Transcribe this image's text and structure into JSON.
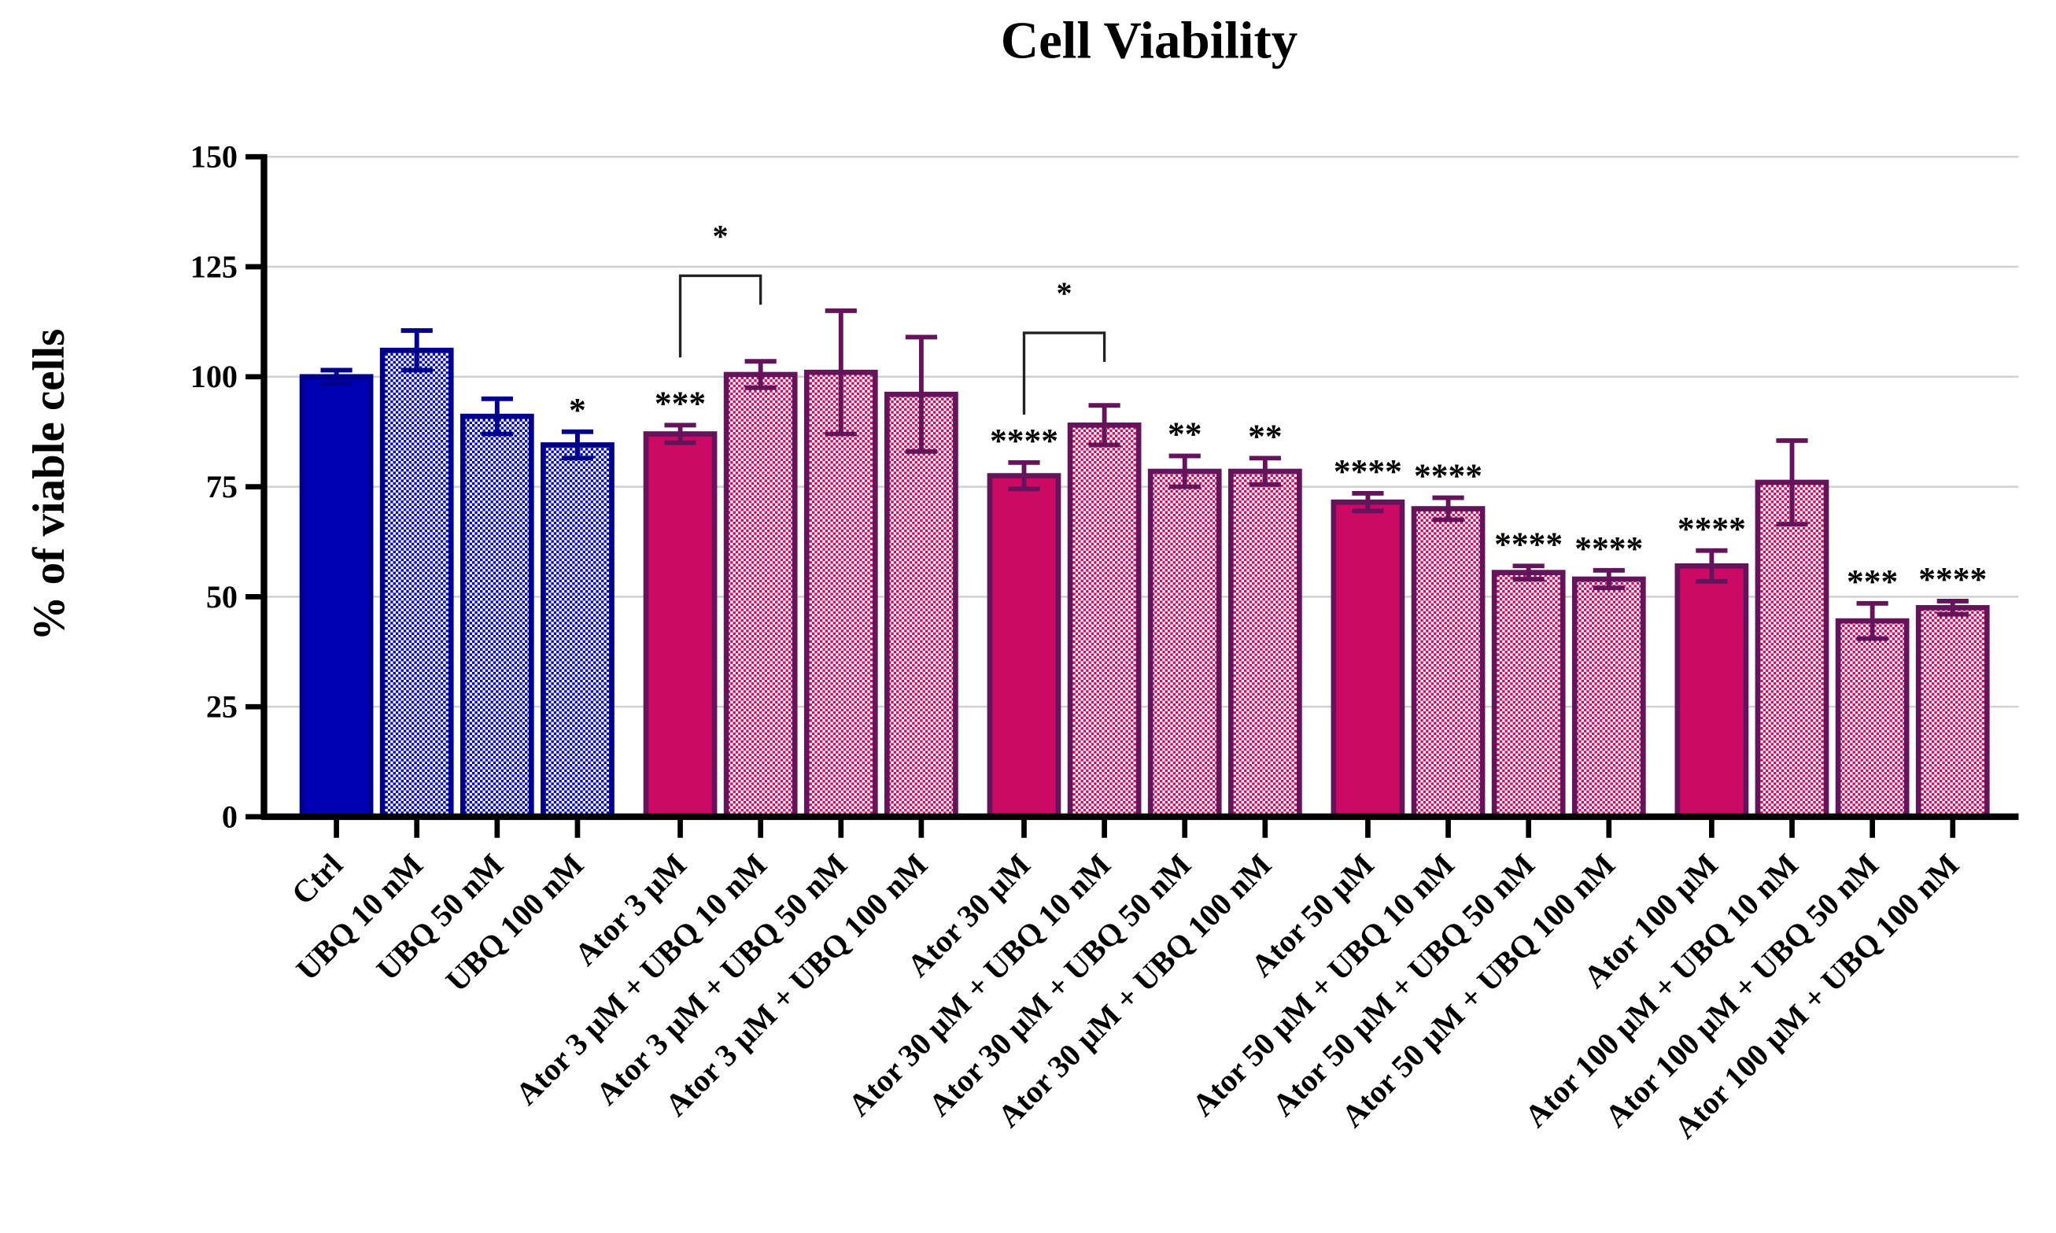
{
  "chart_data": {
    "type": "bar",
    "title": "Cell Viability",
    "y_label": "% of viable cells",
    "categories": [
      "Ctrl",
      "UBQ 10 nM",
      "UBQ 50 nM",
      "UBQ 100 nM",
      "Ator 3 µM",
      "Ator 3 µM + UBQ 10 nM",
      "Ator 3 µM + UBQ 50 nM",
      "Ator 3 µM + UBQ 100 nM",
      "Ator 30 µM",
      "Ator 30 µM + UBQ 10 nM",
      "Ator 30 µM + UBQ 50 nM",
      "Ator 30 µM + UBQ 100 nM",
      "Ator 50 µM",
      "Ator 50 µM + UBQ 10 nM",
      "Ator 50 µM + UBQ 50 nM",
      "Ator 50 µM + UBQ 100 nM",
      "Ator 100 µM",
      "Ator 100 µM + UBQ 10 nM",
      "Ator 100 µM + UBQ 50 nM",
      "Ator 100 µM + UBQ 100 nM"
    ],
    "values": [
      100,
      106,
      91,
      84.5,
      87,
      100.5,
      101,
      96,
      77.5,
      89,
      78.5,
      78.5,
      71.5,
      70,
      55.5,
      54,
      57,
      76,
      44.5,
      47.5
    ],
    "errors": [
      1.5,
      4.5,
      4,
      3,
      2,
      3,
      14,
      13,
      3,
      4.5,
      3.5,
      3,
      2,
      2.5,
      1.5,
      2,
      3.5,
      9.5,
      4,
      1.5
    ],
    "significance": [
      null,
      null,
      null,
      "*",
      "***",
      null,
      null,
      null,
      "****",
      null,
      "**",
      "**",
      "****",
      "****",
      "****",
      "****",
      "****",
      null,
      "***",
      "****"
    ],
    "comparisons": [
      {
        "from": 4,
        "to": 5,
        "label": "*"
      },
      {
        "from": 8,
        "to": 9,
        "label": "*"
      }
    ],
    "colors": [
      "#0000b4",
      "#0000b4",
      "#0000b4",
      "#0000b4",
      "#cc0a66",
      "#cc0a66",
      "#cc0a66",
      "#cc0a66",
      "#cc0a66",
      "#cc0a66",
      "#cc0a66",
      "#cc0a66",
      "#cc0a66",
      "#cc0a66",
      "#cc0a66",
      "#cc0a66",
      "#cc0a66",
      "#cc0a66",
      "#cc0a66",
      "#cc0a66"
    ],
    "edge_colors": [
      "#00008c",
      "#00008c",
      "#00008c",
      "#00008c",
      "#64145a",
      "#64145a",
      "#64145a",
      "#64145a",
      "#64145a",
      "#64145a",
      "#64145a",
      "#64145a",
      "#64145a",
      "#64145a",
      "#64145a",
      "#64145a",
      "#64145a",
      "#64145a",
      "#64145a",
      "#64145a"
    ],
    "hatched": [
      false,
      true,
      true,
      true,
      false,
      true,
      true,
      true,
      false,
      true,
      true,
      true,
      false,
      true,
      true,
      true,
      false,
      true,
      true,
      true
    ],
    "ylim": [
      0,
      150
    ],
    "yticks": [
      0,
      25,
      50,
      75,
      100,
      125,
      150
    ],
    "grid": true
  }
}
